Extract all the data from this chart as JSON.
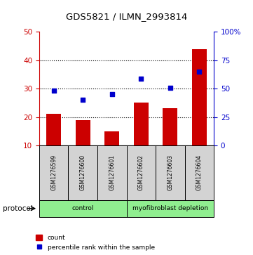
{
  "title": "GDS5821 / ILMN_2993814",
  "samples": [
    "GSM1276599",
    "GSM1276600",
    "GSM1276601",
    "GSM1276602",
    "GSM1276603",
    "GSM1276604"
  ],
  "counts": [
    21.0,
    19.0,
    15.0,
    25.0,
    23.0,
    44.0
  ],
  "percentile_ranks": [
    48.0,
    40.0,
    45.0,
    59.0,
    51.0,
    65.0
  ],
  "bar_color": "#cc0000",
  "dot_color": "#0000cc",
  "left_ylim": [
    10,
    50
  ],
  "left_yticks": [
    10,
    20,
    30,
    40,
    50
  ],
  "right_ylim": [
    0,
    100
  ],
  "right_yticks": [
    0,
    25,
    50,
    75,
    100
  ],
  "right_yticklabels": [
    "0",
    "25",
    "50",
    "75",
    "100%"
  ],
  "protocol_groups": [
    {
      "label": "control",
      "indices": [
        0,
        1,
        2
      ],
      "color": "#90ee90"
    },
    {
      "label": "myofibroblast depletion",
      "indices": [
        3,
        4,
        5
      ],
      "color": "#90ee90"
    }
  ],
  "protocol_label": "protocol",
  "legend_count_label": "count",
  "legend_percentile_label": "percentile rank within the sample",
  "grid_yticks": [
    20,
    30,
    40
  ],
  "grid_color": "#000000",
  "bar_bottom": 10,
  "bar_width": 0.5,
  "left_axis_color": "#cc0000",
  "right_axis_color": "#0000cc",
  "sample_box_color": "#d3d3d3",
  "dot_size": 18
}
